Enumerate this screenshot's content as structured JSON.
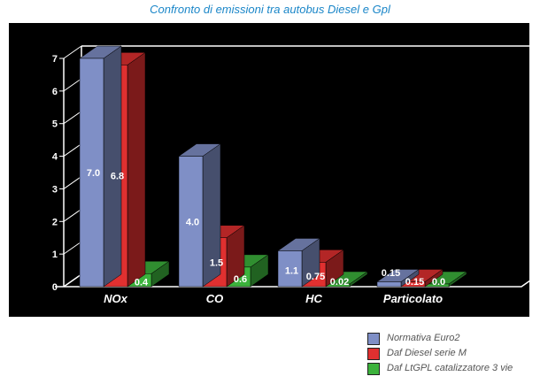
{
  "chart_data": {
    "type": "bar",
    "title": "Confronto di emissioni tra autobus Diesel e Gpl",
    "categories": [
      "NOx",
      "CO",
      "HC",
      "Particolato"
    ],
    "series": [
      {
        "name": "Normativa Euro2",
        "color": "#7f8fc6",
        "values": [
          7.0,
          4.0,
          1.1,
          0.15
        ],
        "labels": [
          "7.0",
          "4.0",
          "1.1",
          "0.15"
        ]
      },
      {
        "name": "Daf Diesel serie M",
        "color": "#e03030",
        "values": [
          6.8,
          1.5,
          0.75,
          0.15
        ],
        "labels": [
          "6.8",
          "1.5",
          "0.75",
          "0.15"
        ]
      },
      {
        "name": "Daf LtGPL catalizzatore 3 vie",
        "color": "#3cb23c",
        "values": [
          0.4,
          0.6,
          0.02,
          0.0
        ],
        "labels": [
          "0.4",
          "0.6",
          "0.02",
          "0.0"
        ]
      }
    ],
    "yticks": [
      "0",
      "1",
      "2",
      "3",
      "4",
      "5",
      "6",
      "7"
    ],
    "ylim": [
      0,
      7
    ],
    "grid": false,
    "legend_position": "bottom-right",
    "style": "3d"
  }
}
